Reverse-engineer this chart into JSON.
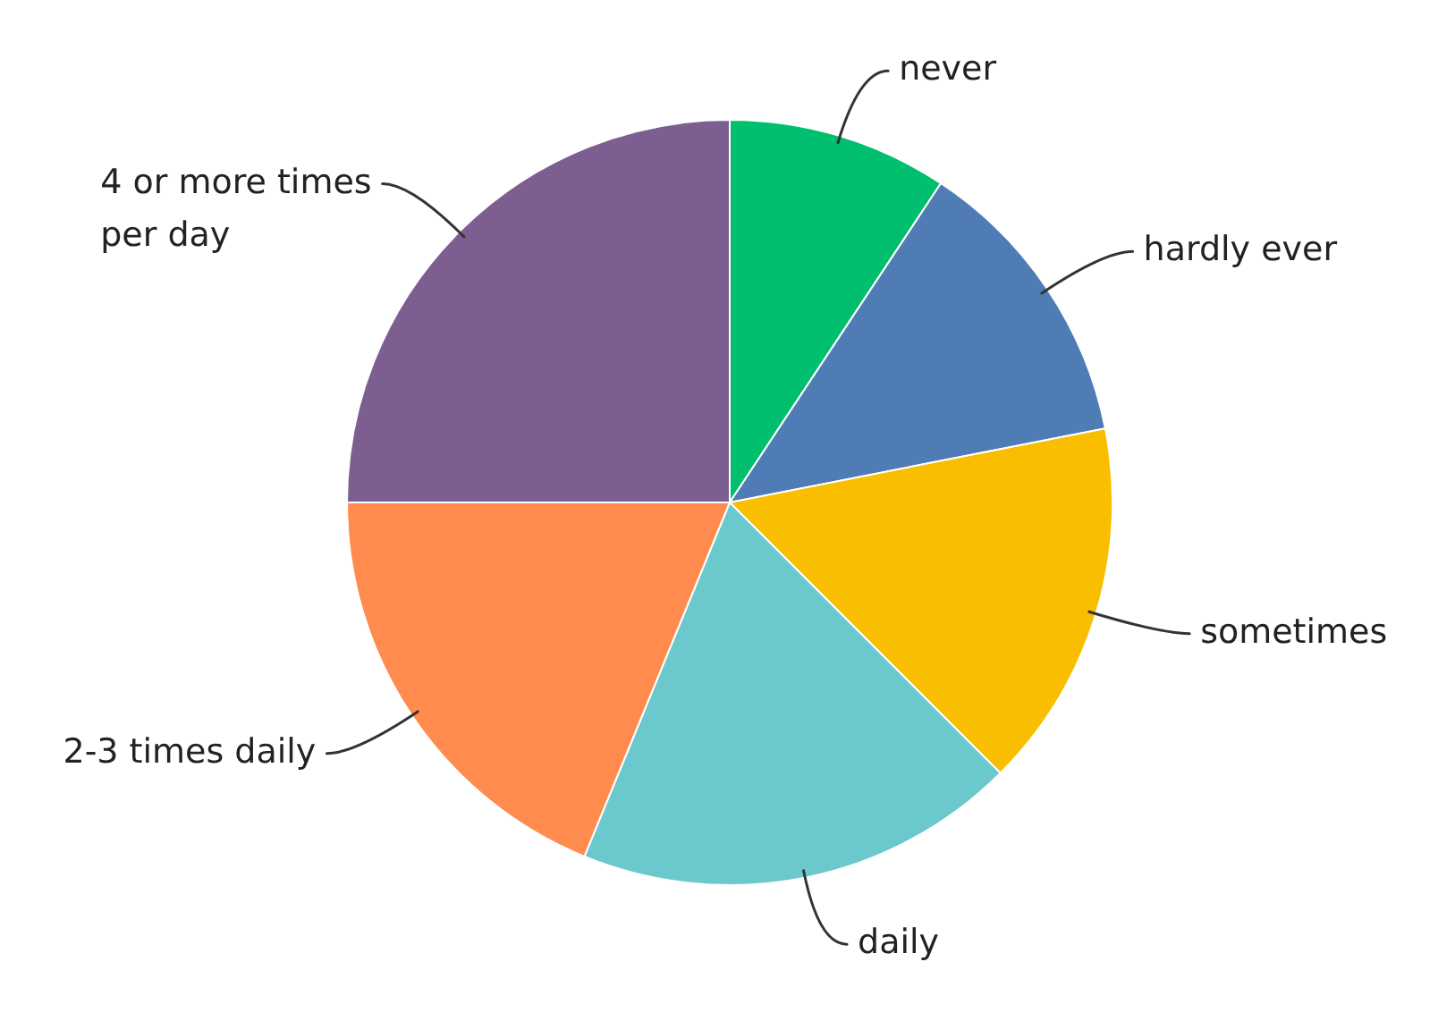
{
  "chart_data": {
    "type": "pie",
    "categories": [
      "never",
      "hardly ever",
      "sometimes",
      "daily",
      "2-3 times daily",
      "4 or more times per day"
    ],
    "values": [
      9.3,
      12.6,
      15.6,
      18.7,
      18.8,
      25.0
    ],
    "colors": [
      "#00bf6f",
      "#507cb6",
      "#f9be00",
      "#6bc8cd",
      "#ff8b4f",
      "#7d5e90"
    ]
  }
}
